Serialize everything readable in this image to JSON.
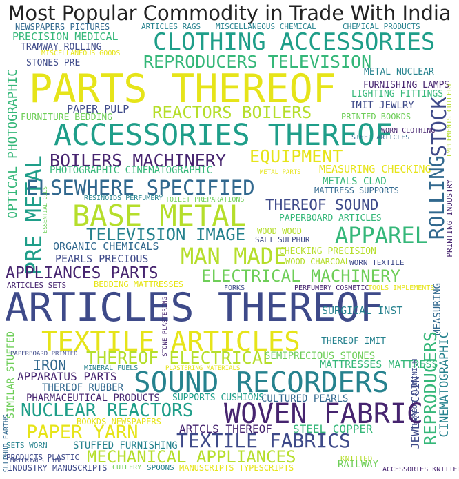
{
  "title": "Most Popular Commodity in Trade With India",
  "palette": {
    "purple": "#46246f",
    "indigo": "#3e4a89",
    "blue": "#31688e",
    "teal": "#26828e",
    "teal_green": "#1f9e89",
    "green": "#35b779",
    "lime": "#6ece58",
    "yellow_green": "#b5de2b",
    "yellow": "#e6e419"
  },
  "words": [
    {
      "text": "NEWSPAPERS PICTURES",
      "color": "#31688e"
    },
    {
      "text": "ARTICLES RAGS",
      "color": "#26828e"
    },
    {
      "text": "MISCELLANEOUS CHEMICAL",
      "color": "#26828e"
    },
    {
      "text": "CHEMICAL PRODUCTS",
      "color": "#26828e"
    },
    {
      "text": "PRECISION MEDICAL",
      "color": "#35b779"
    },
    {
      "text": "CLOTHING ACCESSORIES",
      "color": "#1f9e89"
    },
    {
      "text": "TRAMWAY ROLLING",
      "color": "#3e4a89"
    },
    {
      "text": "MISCELLANEOUS GOODS",
      "color": "#e6e419"
    },
    {
      "text": "REPRODUCERS TELEVISION",
      "color": "#35b779"
    },
    {
      "text": "STONES PRE",
      "color": "#3e4a89"
    },
    {
      "text": "PARTS THEREOF",
      "color": "#e6e419"
    },
    {
      "text": "METAL NUCLEAR",
      "color": "#26828e"
    },
    {
      "text": "FURNISHING LAMPS",
      "color": "#46246f"
    },
    {
      "text": "LIGHTING FITTINGS",
      "color": "#35b779"
    },
    {
      "text": "IMPLEMENTS CUTLERY",
      "color": "#b5de2b"
    },
    {
      "text": "IMIT JEWLRY",
      "color": "#3e4a89"
    },
    {
      "text": "PAPER PULP",
      "color": "#3e4a89"
    },
    {
      "text": "REACTORS BOILERS",
      "color": "#b5de2b"
    },
    {
      "text": "FURNITURE BEDDING",
      "color": "#6ece58"
    },
    {
      "text": "PRINTED BOOKDS",
      "color": "#6ece58"
    },
    {
      "text": "STOCK",
      "color": "#3e4a89"
    },
    {
      "text": "ACCESSORIES THEREOF",
      "color": "#1f9e89"
    },
    {
      "text": "OPTICAL PHOTOGRAPHIC",
      "color": "#35b779"
    },
    {
      "text": "WORN CLOTHING",
      "color": "#46246f"
    },
    {
      "text": "STEEL ARTICLES",
      "color": "#31688e"
    },
    {
      "text": "BOILERS MACHINERY",
      "color": "#46246f"
    },
    {
      "text": "EQUIPMENT",
      "color": "#e6e419"
    },
    {
      "text": "PRE METAL",
      "color": "#1f9e89"
    },
    {
      "text": "PHOTOGRAPHIC CINEMATOGRAPHIC",
      "color": "#35b779"
    },
    {
      "text": "METAL PARTS",
      "color": "#e6e419"
    },
    {
      "text": "MEASURING CHECKING",
      "color": "#e6e419"
    },
    {
      "text": "ELSEWHERE SPECIFIED",
      "color": "#31688e"
    },
    {
      "text": "METALS CLAD",
      "color": "#35b779"
    },
    {
      "text": "MATTRESS SUPPORTS",
      "color": "#31688e"
    },
    {
      "text": "RESINOIDS PERFUMERY",
      "color": "#26828e"
    },
    {
      "text": "TOILET PREPARATIONS",
      "color": "#6ece58"
    },
    {
      "text": "ESSENTIAL OILS",
      "color": "#6ece58"
    },
    {
      "text": "BASE METAL",
      "color": "#b5de2b"
    },
    {
      "text": "THEREOF SOUND",
      "color": "#3e4a89"
    },
    {
      "text": "ROLLING",
      "color": "#31688e"
    },
    {
      "text": "PRINTING INDUSTRY",
      "color": "#46246f"
    },
    {
      "text": "PAPERBOARD ARTICLES",
      "color": "#35b779"
    },
    {
      "text": "TELEVISION IMAGE",
      "color": "#26828e"
    },
    {
      "text": "WOOD WOOD",
      "color": "#b5de2b"
    },
    {
      "text": "APPAREL",
      "color": "#35b779"
    },
    {
      "text": "SALT SULPHUR",
      "color": "#3e4a89"
    },
    {
      "text": "ORGANIC CHEMICALS",
      "color": "#31688e"
    },
    {
      "text": "MAN MADE",
      "color": "#b5de2b"
    },
    {
      "text": "CHECKING PRECISION",
      "color": "#b5de2b"
    },
    {
      "text": "PEARLS PRECIOUS",
      "color": "#3e4a89"
    },
    {
      "text": "WOOD CHARCOAL",
      "color": "#b5de2b"
    },
    {
      "text": "WORN TEXTILE",
      "color": "#3e4a89"
    },
    {
      "text": "APPLIANCES PARTS",
      "color": "#46246f"
    },
    {
      "text": "ELECTRICAL MACHINERY",
      "color": "#6ece58"
    },
    {
      "text": "ARTICLES SETS",
      "color": "#46246f"
    },
    {
      "text": "BEDDING MATTRESSES",
      "color": "#e6e419"
    },
    {
      "text": "FORKS",
      "color": "#3e4a89"
    },
    {
      "text": "PERFUMERY COSMETIC",
      "color": "#46246f"
    },
    {
      "text": "TOOLS IMPLEMENTS",
      "color": "#e6e419"
    },
    {
      "text": "ARTICLES THEREOF",
      "color": "#3e4a89"
    },
    {
      "text": "MEASURING",
      "color": "#31688e"
    },
    {
      "text": "CINEMATOGRAPHIC",
      "color": "#26828e"
    },
    {
      "text": "STONE PLASTERING",
      "color": "#46246f"
    },
    {
      "text": "SURGICAL INST",
      "color": "#26828e"
    },
    {
      "text": "TEXTILE ARTICLES",
      "color": "#e6e419"
    },
    {
      "text": "THEREOF IMIT",
      "color": "#26828e"
    },
    {
      "text": "PAPERBOARD PRINTED",
      "color": "#3e4a89"
    },
    {
      "text": "THEREOF ELECTRICAL",
      "color": "#b5de2b"
    },
    {
      "text": "SEMIPRECIOUS STONES",
      "color": "#6ece58"
    },
    {
      "text": "IRON",
      "color": "#31688e"
    },
    {
      "text": "MATTRESSES MATTRESS",
      "color": "#35b779"
    },
    {
      "text": "MINERAL FUELS",
      "color": "#26828e"
    },
    {
      "text": "PLASTERING MATERIALS",
      "color": "#e6e419"
    },
    {
      "text": "APPARATUS PARTS",
      "color": "#46246f"
    },
    {
      "text": "SOUND RECORDERS",
      "color": "#26828e"
    },
    {
      "text": "THEREOF RUBBER",
      "color": "#31688e"
    },
    {
      "text": "REPRODUCERS",
      "color": "#35b779"
    },
    {
      "text": "JEWLRY COIN",
      "color": "#3e4a89"
    },
    {
      "text": "THEREOF ALUMINIUM",
      "color": "#3e4a89"
    },
    {
      "text": "PHARMACEUTICAL PRODUCTS",
      "color": "#46246f"
    },
    {
      "text": "SUPPORTS CUSHIONS",
      "color": "#1f9e89"
    },
    {
      "text": "CULTURED PEARLS",
      "color": "#31688e"
    },
    {
      "text": "SIMILAR STUFFED",
      "color": "#6ece58"
    },
    {
      "text": "NUCLEAR REACTORS",
      "color": "#1f9e89"
    },
    {
      "text": "WOVEN FABRIC",
      "color": "#46246f"
    },
    {
      "text": "BOOKDS NEWSPAPERS",
      "color": "#e6e419"
    },
    {
      "text": "SULPHUR EARTHS",
      "color": "#31688e"
    },
    {
      "text": "PAPER YARN",
      "color": "#e6e419"
    },
    {
      "text": "ARTCLS THEREOF",
      "color": "#46246f"
    },
    {
      "text": "STEEL COPPER",
      "color": "#35b779"
    },
    {
      "text": "TEXTILE FABRICS",
      "color": "#3e4a89"
    },
    {
      "text": "SETS WORN",
      "color": "#26828e"
    },
    {
      "text": "STUFFED FURNISHING",
      "color": "#26828e"
    },
    {
      "text": "MECHANICAL APPLIANCES",
      "color": "#b5de2b"
    },
    {
      "text": "PRODUCTS PLASTIC",
      "color": "#3e4a89"
    },
    {
      "text": "MATERIALS LIME",
      "color": "#3e4a89"
    },
    {
      "text": "SPOONS",
      "color": "#26828e"
    },
    {
      "text": "CUTLERY",
      "color": "#6ece58"
    },
    {
      "text": "KNITTED",
      "color": "#b5de2b"
    },
    {
      "text": "INDUSTRY MANUSCRIPTS",
      "color": "#3e4a89"
    },
    {
      "text": "MANUSCRIPTS TYPESCRIPTS",
      "color": "#e6e419"
    },
    {
      "text": "RAILWAY",
      "color": "#6ece58"
    },
    {
      "text": "ACCESSORIES KNITTED",
      "color": "#46246f"
    }
  ]
}
